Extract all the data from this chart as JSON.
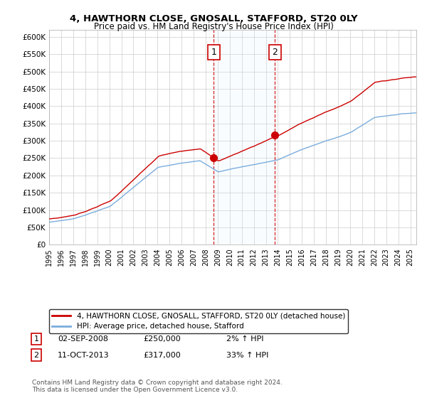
{
  "title": "4, HAWTHORN CLOSE, GNOSALL, STAFFORD, ST20 0LY",
  "subtitle": "Price paid vs. HM Land Registry's House Price Index (HPI)",
  "legend_line1": "4, HAWTHORN CLOSE, GNOSALL, STAFFORD, ST20 0LY (detached house)",
  "legend_line2": "HPI: Average price, detached house, Stafford",
  "annotation1_date": "02-SEP-2008",
  "annotation1_price": "£250,000",
  "annotation1_hpi": "2% ↑ HPI",
  "annotation2_date": "11-OCT-2013",
  "annotation2_price": "£317,000",
  "annotation2_hpi": "33% ↑ HPI",
  "footnote": "Contains HM Land Registry data © Crown copyright and database right 2024.\nThis data is licensed under the Open Government Licence v3.0.",
  "ylim": [
    0,
    620000
  ],
  "yticks": [
    0,
    50000,
    100000,
    150000,
    200000,
    250000,
    300000,
    350000,
    400000,
    450000,
    500000,
    550000,
    600000
  ],
  "hpi_color": "#7aaddc",
  "price_color": "#cc0000",
  "shade_color": "#ddeeff",
  "vline_color": "#cc0000",
  "background_color": "#ffffff",
  "grid_color": "#cccccc",
  "sale1_t": 2008.667,
  "sale2_t": 2013.75,
  "sale1_price": 250000,
  "sale2_price": 317000
}
